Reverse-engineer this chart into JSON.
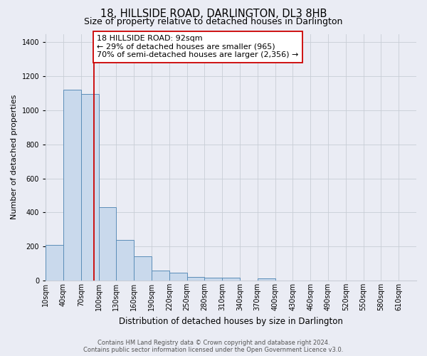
{
  "title": "18, HILLSIDE ROAD, DARLINGTON, DL3 8HB",
  "subtitle": "Size of property relative to detached houses in Darlington",
  "xlabel": "Distribution of detached houses by size in Darlington",
  "ylabel": "Number of detached properties",
  "bin_starts": [
    10,
    40,
    70,
    100,
    130,
    160,
    190,
    220,
    250,
    280,
    310,
    340,
    370,
    400,
    430,
    460,
    490,
    520,
    550,
    580,
    610
  ],
  "bin_width": 30,
  "bin_labels": [
    "10sqm",
    "40sqm",
    "70sqm",
    "100sqm",
    "130sqm",
    "160sqm",
    "190sqm",
    "220sqm",
    "250sqm",
    "280sqm",
    "310sqm",
    "340sqm",
    "370sqm",
    "400sqm",
    "430sqm",
    "460sqm",
    "490sqm",
    "520sqm",
    "550sqm",
    "580sqm",
    "610sqm"
  ],
  "bar_heights": [
    210,
    1120,
    1095,
    430,
    240,
    143,
    60,
    47,
    22,
    15,
    15,
    0,
    13,
    0,
    0,
    0,
    0,
    0,
    0,
    0,
    0
  ],
  "bar_color": "#c9d9ec",
  "bar_edge_color": "#5b8db8",
  "vline_x": 92,
  "vline_color": "#cc0000",
  "annotation_text": "18 HILLSIDE ROAD: 92sqm\n← 29% of detached houses are smaller (965)\n70% of semi-detached houses are larger (2,356) →",
  "annotation_box_color": "#ffffff",
  "annotation_box_edge_color": "#cc0000",
  "ylim": [
    0,
    1450
  ],
  "yticks": [
    0,
    200,
    400,
    600,
    800,
    1000,
    1200,
    1400
  ],
  "xlim_left": 10,
  "xlim_right": 640,
  "grid_color": "#c8cdd6",
  "bg_color": "#eaecf4",
  "footer_text": "Contains HM Land Registry data © Crown copyright and database right 2024.\nContains public sector information licensed under the Open Government Licence v3.0.",
  "title_fontsize": 10.5,
  "subtitle_fontsize": 9,
  "annotation_fontsize": 8,
  "footer_fontsize": 6,
  "ylabel_fontsize": 8,
  "xlabel_fontsize": 8.5,
  "tick_fontsize": 7
}
